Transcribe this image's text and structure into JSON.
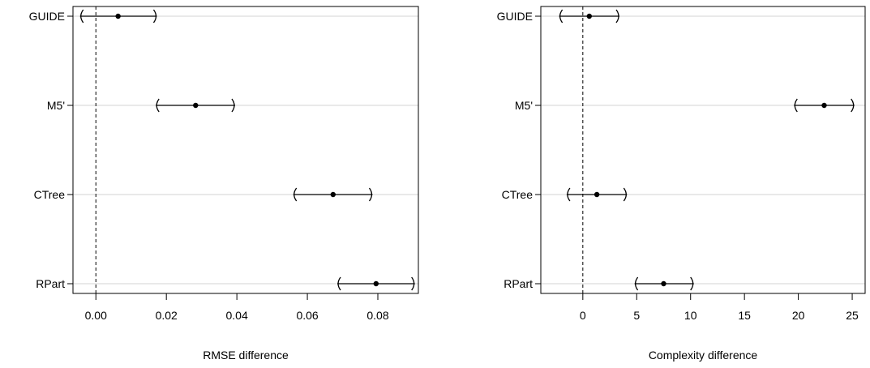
{
  "chart_data": [
    {
      "type": "errorbar",
      "xlabel": "RMSE difference",
      "ylabel": "",
      "xlim": [
        -0.0065,
        0.0915
      ],
      "reference_line": 0,
      "grid": "horizontal",
      "categories": [
        "GUIDE",
        "M5'",
        "CTree",
        "RPart"
      ],
      "estimates": [
        0.0063,
        0.0283,
        0.0673,
        0.0795
      ],
      "lower": [
        -0.0045,
        0.017,
        0.056,
        0.0685
      ],
      "upper": [
        0.0173,
        0.0395,
        0.0785,
        0.0905
      ],
      "xticks": [
        0.0,
        0.02,
        0.04,
        0.06,
        0.08
      ],
      "xtick_labels": [
        "0.00",
        "0.02",
        "0.04",
        "0.06",
        "0.08"
      ]
    },
    {
      "type": "errorbar",
      "xlabel": "Complexity difference",
      "ylabel": "",
      "xlim": [
        -3.9,
        26.2
      ],
      "reference_line": 0,
      "grid": "horizontal",
      "categories": [
        "GUIDE",
        "M5'",
        "CTree",
        "RPart"
      ],
      "estimates": [
        0.6,
        22.4,
        1.3,
        7.5
      ],
      "lower": [
        -2.2,
        19.6,
        -1.5,
        4.8
      ],
      "upper": [
        3.4,
        25.2,
        4.1,
        10.3
      ],
      "xticks": [
        0,
        5,
        10,
        15,
        20,
        25
      ],
      "xtick_labels": [
        "0",
        "5",
        "10",
        "15",
        "20",
        "25"
      ]
    }
  ]
}
